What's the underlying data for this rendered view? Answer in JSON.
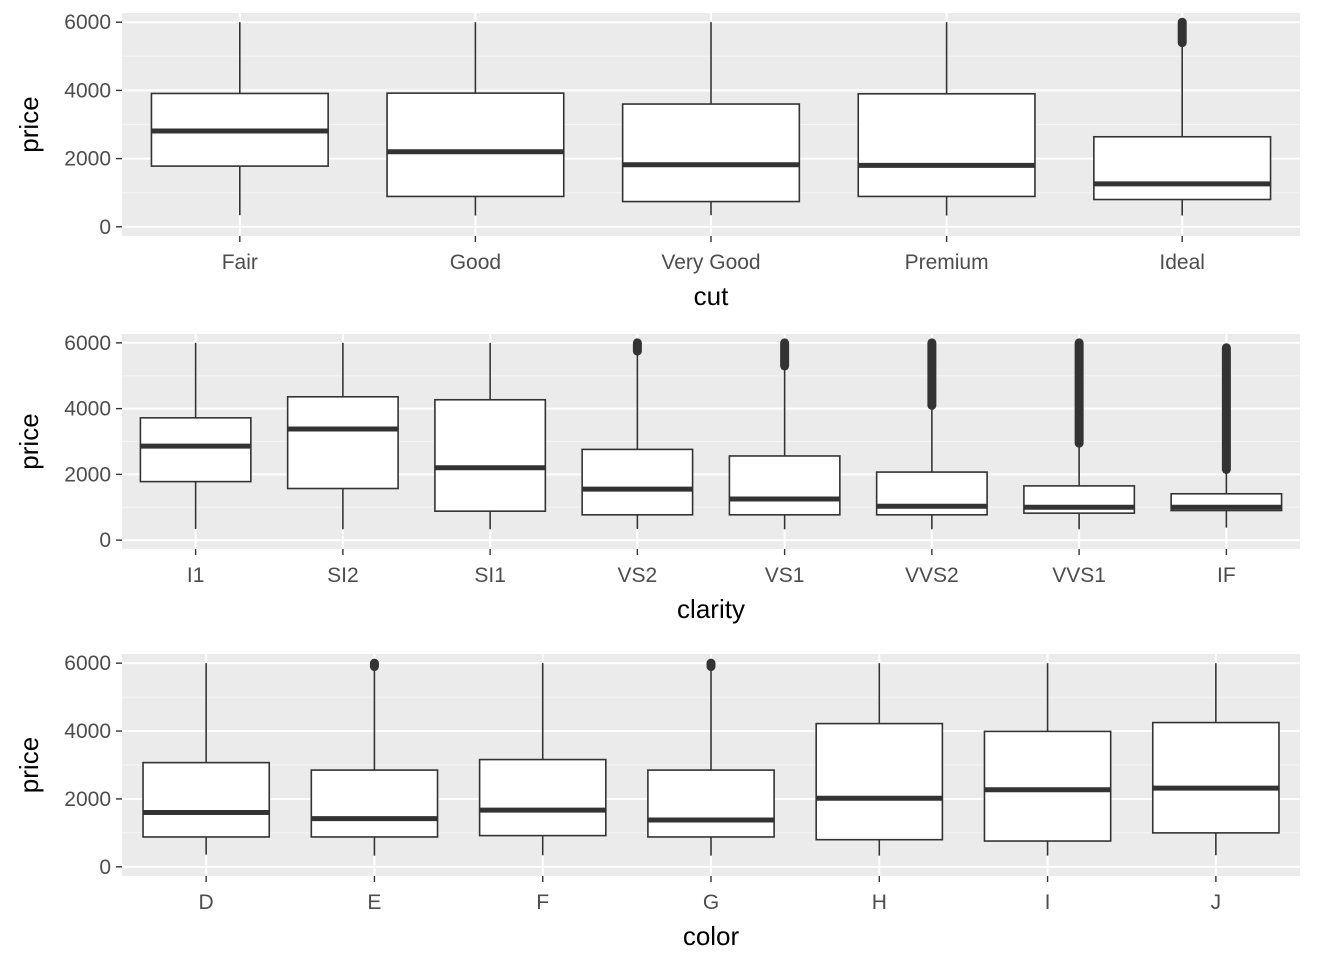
{
  "chart_data": [
    {
      "type": "boxplot",
      "xlabel": "cut",
      "ylabel": "price",
      "ylim": [
        0,
        6000
      ],
      "y_ticks": [
        "0",
        "2000",
        "4000",
        "6000"
      ],
      "grid": true,
      "categories": [
        "Fair",
        "Good",
        "Very Good",
        "Premium",
        "Ideal"
      ],
      "boxes": [
        {
          "min": 340,
          "q1": 1780,
          "median": 2810,
          "q3": 3910,
          "max": 6000,
          "outliers": []
        },
        {
          "min": 330,
          "q1": 890,
          "median": 2200,
          "q3": 3920,
          "max": 6000,
          "outliers": []
        },
        {
          "min": 340,
          "q1": 740,
          "median": 1820,
          "q3": 3600,
          "max": 6000,
          "outliers": []
        },
        {
          "min": 330,
          "q1": 890,
          "median": 1800,
          "q3": 3900,
          "max": 6000,
          "outliers": []
        },
        {
          "min": 330,
          "q1": 800,
          "median": 1260,
          "q3": 2640,
          "max": 5400,
          "outliers": [
            [
              5400,
              6000
            ]
          ]
        }
      ]
    },
    {
      "type": "boxplot",
      "xlabel": "clarity",
      "ylabel": "price",
      "ylim": [
        0,
        6000
      ],
      "y_ticks": [
        "0",
        "2000",
        "4000",
        "6000"
      ],
      "grid": true,
      "categories": [
        "I1",
        "SI2",
        "SI1",
        "VS2",
        "VS1",
        "VVS2",
        "VVS1",
        "IF"
      ],
      "boxes": [
        {
          "min": 340,
          "q1": 1780,
          "median": 2860,
          "q3": 3720,
          "max": 6000,
          "outliers": []
        },
        {
          "min": 330,
          "q1": 1570,
          "median": 3380,
          "q3": 4360,
          "max": 6000,
          "outliers": []
        },
        {
          "min": 330,
          "q1": 880,
          "median": 2200,
          "q3": 4270,
          "max": 6000,
          "outliers": []
        },
        {
          "min": 340,
          "q1": 770,
          "median": 1550,
          "q3": 2760,
          "max": 5750,
          "outliers": [
            [
              5750,
              6000
            ]
          ]
        },
        {
          "min": 330,
          "q1": 770,
          "median": 1250,
          "q3": 2560,
          "max": 5300,
          "outliers": [
            [
              5300,
              6000
            ]
          ]
        },
        {
          "min": 330,
          "q1": 770,
          "median": 1030,
          "q3": 2070,
          "max": 4100,
          "outliers": [
            [
              4100,
              6000
            ]
          ]
        },
        {
          "min": 330,
          "q1": 820,
          "median": 1000,
          "q3": 1650,
          "max": 2950,
          "outliers": [
            [
              2950,
              6000
            ]
          ]
        },
        {
          "min": 380,
          "q1": 900,
          "median": 1000,
          "q3": 1410,
          "max": 2150,
          "outliers": [
            [
              2150,
              5850
            ]
          ]
        }
      ]
    },
    {
      "type": "boxplot",
      "xlabel": "color",
      "ylabel": "price",
      "ylim": [
        0,
        6000
      ],
      "y_ticks": [
        "0",
        "2000",
        "4000",
        "6000"
      ],
      "grid": true,
      "categories": [
        "D",
        "E",
        "F",
        "G",
        "H",
        "I",
        "J"
      ],
      "boxes": [
        {
          "min": 360,
          "q1": 880,
          "median": 1600,
          "q3": 3070,
          "max": 6000,
          "outliers": []
        },
        {
          "min": 330,
          "q1": 880,
          "median": 1420,
          "q3": 2850,
          "max": 5900,
          "outliers": [
            [
              5900,
              6000
            ]
          ]
        },
        {
          "min": 340,
          "q1": 920,
          "median": 1670,
          "q3": 3160,
          "max": 6000,
          "outliers": []
        },
        {
          "min": 330,
          "q1": 880,
          "median": 1380,
          "q3": 2850,
          "max": 5900,
          "outliers": [
            [
              5900,
              6000
            ]
          ]
        },
        {
          "min": 330,
          "q1": 800,
          "median": 2020,
          "q3": 4220,
          "max": 6000,
          "outliers": []
        },
        {
          "min": 330,
          "q1": 760,
          "median": 2270,
          "q3": 3990,
          "max": 6000,
          "outliers": []
        },
        {
          "min": 340,
          "q1": 1000,
          "median": 2320,
          "q3": 4250,
          "max": 6000,
          "outliers": []
        }
      ]
    }
  ]
}
